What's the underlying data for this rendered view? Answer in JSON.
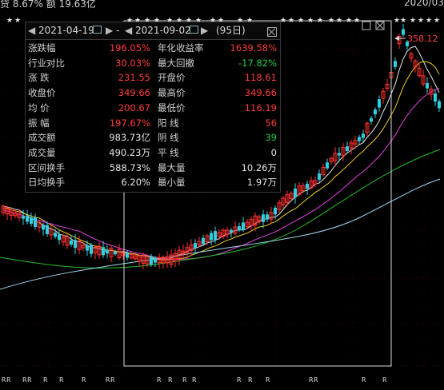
{
  "top": {
    "left_text": "贷 8.67%  额 19.63亿",
    "right_text": "2020/03"
  },
  "panel": {
    "start_date": "2021-04-19",
    "separator": "-",
    "end_date": "2021-09-02",
    "days": "(95日)",
    "rows": [
      {
        "l1": "涨跌幅",
        "v1": "196.05%",
        "c1": "red",
        "l2": "年化收益率",
        "v2": "1639.58%",
        "c2": "red"
      },
      {
        "l1": "行业对比",
        "v1": "30.03%",
        "c1": "red",
        "l2": "最大回撤",
        "v2": "-17.82%",
        "c2": "green"
      },
      {
        "l1": "涨  跌",
        "v1": "231.55",
        "c1": "red",
        "l2": "开盘价",
        "v2": "118.61",
        "c2": "red"
      },
      {
        "l1": "收盘价",
        "v1": "349.66",
        "c1": "red",
        "l2": "最高价",
        "v2": "349.66",
        "c2": "red"
      },
      {
        "l1": "均  价",
        "v1": "200.67",
        "c1": "red",
        "l2": "最低价",
        "v2": "116.19",
        "c2": "red"
      },
      {
        "l1": "振  幅",
        "v1": "197.67%",
        "c1": "red",
        "l2": "阳  线",
        "v2": "56",
        "c2": "red"
      },
      {
        "l1": "成交额",
        "v1": "983.73亿",
        "c1": "white",
        "l2": "阴  线",
        "v2": "39",
        "c2": "green"
      },
      {
        "l1": "成交量",
        "v1": "490.23万",
        "c1": "white",
        "l2": "平  线",
        "v2": "0",
        "c2": "white"
      },
      {
        "l1": "区间换手",
        "v1": "588.73%",
        "c1": "white",
        "l2": "最大量",
        "v2": "10.26万",
        "c2": "white"
      },
      {
        "l1": "日均换手",
        "v1": "6.20%",
        "c1": "white",
        "l2": "最小量",
        "v2": "1.97万",
        "c2": "white"
      }
    ]
  },
  "chart": {
    "high_label": "358.12",
    "colors": {
      "up": "#ff3030",
      "down": "#2fd0e0",
      "ma5": "#e8e8e8",
      "ma10": "#f0d020",
      "ma20": "#e040e0",
      "ma60": "#20c020",
      "ma120": "#a0d8f0"
    },
    "markers_bottom": [
      "R",
      "R",
      "R",
      "R",
      "R",
      "R",
      "R",
      "R",
      "R",
      "R",
      "R",
      "R",
      "R",
      "R",
      "R",
      "R",
      "R",
      "R",
      "R",
      "R"
    ]
  }
}
